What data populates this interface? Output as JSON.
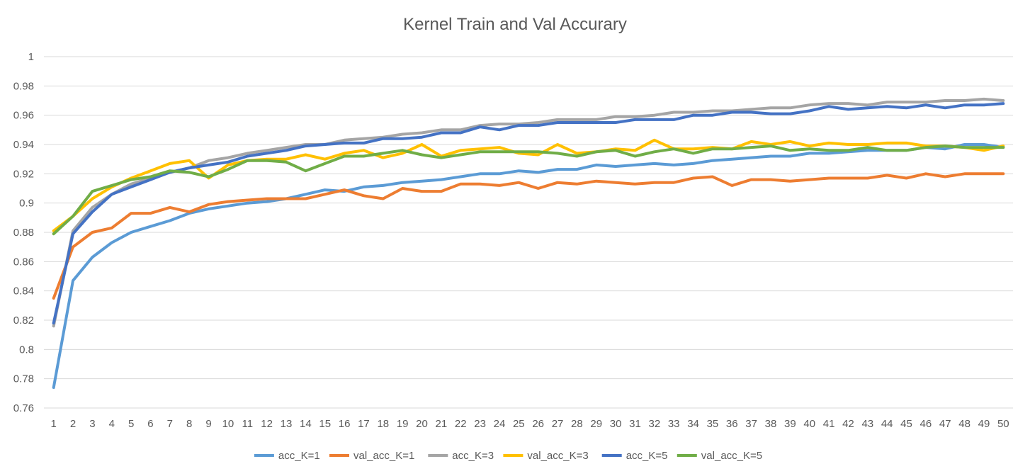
{
  "chart_data": {
    "type": "line",
    "title": "Kernel Train and Val Accurary",
    "xlabel": "",
    "ylabel": "",
    "ylim": [
      0.76,
      1
    ],
    "yticks": [
      0.76,
      0.78,
      0.8,
      0.82,
      0.84,
      0.86,
      0.88,
      0.9,
      0.92,
      0.94,
      0.96,
      0.98,
      1
    ],
    "ytick_labels": [
      "0.76",
      "0.78",
      "0.8",
      "0.82",
      "0.84",
      "0.86",
      "0.88",
      "0.9",
      "0.92",
      "0.94",
      "0.96",
      "0.98",
      "1"
    ],
    "grid": true,
    "legend_position": "bottom",
    "x": [
      1,
      2,
      3,
      4,
      5,
      6,
      7,
      8,
      9,
      10,
      11,
      12,
      13,
      14,
      15,
      16,
      17,
      18,
      19,
      20,
      21,
      22,
      23,
      24,
      25,
      26,
      27,
      28,
      29,
      30,
      31,
      32,
      33,
      34,
      35,
      36,
      37,
      38,
      39,
      40,
      41,
      42,
      43,
      44,
      45,
      46,
      47,
      48,
      49,
      50
    ],
    "series": [
      {
        "name": "acc_K=1",
        "color": "#5B9BD5",
        "values": [
          0.774,
          0.847,
          0.863,
          0.873,
          0.88,
          0.884,
          0.888,
          0.893,
          0.896,
          0.898,
          0.9,
          0.901,
          0.903,
          0.906,
          0.909,
          0.908,
          0.911,
          0.912,
          0.914,
          0.915,
          0.916,
          0.918,
          0.92,
          0.92,
          0.922,
          0.921,
          0.923,
          0.923,
          0.926,
          0.925,
          0.926,
          0.927,
          0.926,
          0.927,
          0.929,
          0.93,
          0.931,
          0.932,
          0.932,
          0.934,
          0.934,
          0.935,
          0.936,
          0.936,
          0.936,
          0.938,
          0.937,
          0.94,
          0.94,
          0.938
        ]
      },
      {
        "name": "val_acc_K=1",
        "color": "#ED7D31",
        "values": [
          0.835,
          0.87,
          0.88,
          0.883,
          0.893,
          0.893,
          0.897,
          0.894,
          0.899,
          0.901,
          0.902,
          0.903,
          0.903,
          0.903,
          0.906,
          0.909,
          0.905,
          0.903,
          0.91,
          0.908,
          0.908,
          0.913,
          0.913,
          0.912,
          0.914,
          0.91,
          0.914,
          0.913,
          0.915,
          0.914,
          0.913,
          0.914,
          0.914,
          0.917,
          0.918,
          0.912,
          0.916,
          0.916,
          0.915,
          0.916,
          0.917,
          0.917,
          0.917,
          0.919,
          0.917,
          0.92,
          0.918,
          0.92,
          0.92,
          0.92
        ]
      },
      {
        "name": "acc_K=3",
        "color": "#A5A5A5",
        "values": [
          0.816,
          0.881,
          0.897,
          0.906,
          0.913,
          0.917,
          0.921,
          0.924,
          0.929,
          0.931,
          0.934,
          0.936,
          0.938,
          0.94,
          0.94,
          0.943,
          0.944,
          0.945,
          0.947,
          0.948,
          0.95,
          0.95,
          0.953,
          0.954,
          0.954,
          0.955,
          0.957,
          0.957,
          0.957,
          0.959,
          0.959,
          0.96,
          0.962,
          0.962,
          0.963,
          0.963,
          0.964,
          0.965,
          0.965,
          0.967,
          0.968,
          0.968,
          0.967,
          0.969,
          0.969,
          0.969,
          0.97,
          0.97,
          0.971,
          0.97
        ]
      },
      {
        "name": "val_acc_K=3",
        "color": "#FFC000",
        "values": [
          0.881,
          0.891,
          0.903,
          0.911,
          0.917,
          0.922,
          0.927,
          0.929,
          0.917,
          0.926,
          0.929,
          0.93,
          0.93,
          0.933,
          0.93,
          0.934,
          0.936,
          0.931,
          0.934,
          0.94,
          0.932,
          0.936,
          0.937,
          0.938,
          0.934,
          0.933,
          0.94,
          0.934,
          0.935,
          0.937,
          0.936,
          0.943,
          0.937,
          0.937,
          0.938,
          0.937,
          0.942,
          0.94,
          0.942,
          0.939,
          0.941,
          0.94,
          0.94,
          0.941,
          0.941,
          0.939,
          0.939,
          0.938,
          0.936,
          0.939
        ]
      },
      {
        "name": "acc_K=5",
        "color": "#4472C4",
        "values": [
          0.818,
          0.879,
          0.894,
          0.906,
          0.911,
          0.916,
          0.921,
          0.924,
          0.926,
          0.928,
          0.932,
          0.934,
          0.936,
          0.939,
          0.94,
          0.941,
          0.941,
          0.944,
          0.944,
          0.945,
          0.948,
          0.948,
          0.952,
          0.95,
          0.953,
          0.953,
          0.955,
          0.955,
          0.955,
          0.955,
          0.957,
          0.957,
          0.957,
          0.96,
          0.96,
          0.962,
          0.962,
          0.961,
          0.961,
          0.963,
          0.966,
          0.964,
          0.965,
          0.966,
          0.965,
          0.967,
          0.965,
          0.967,
          0.967,
          0.968
        ]
      },
      {
        "name": "val_acc_K=5",
        "color": "#70AD47",
        "values": [
          0.879,
          0.891,
          0.908,
          0.912,
          0.916,
          0.918,
          0.922,
          0.921,
          0.918,
          0.923,
          0.929,
          0.929,
          0.928,
          0.922,
          0.927,
          0.932,
          0.932,
          0.934,
          0.936,
          0.933,
          0.931,
          0.933,
          0.935,
          0.935,
          0.935,
          0.935,
          0.934,
          0.932,
          0.935,
          0.936,
          0.932,
          0.935,
          0.937,
          0.934,
          0.937,
          0.937,
          0.938,
          0.939,
          0.936,
          0.937,
          0.936,
          0.936,
          0.938,
          0.936,
          0.936,
          0.938,
          0.939,
          0.938,
          0.938,
          0.938
        ]
      }
    ]
  }
}
